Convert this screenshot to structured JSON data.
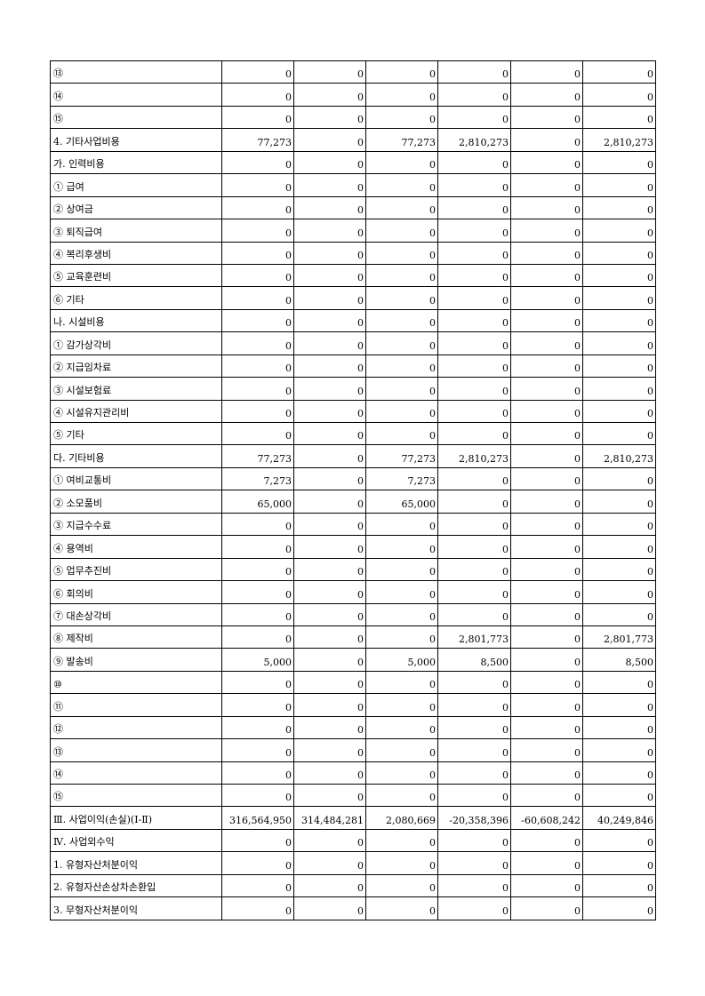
{
  "table": {
    "rows": [
      [
        "⑬",
        "0",
        "0",
        "0",
        "0",
        "0",
        "0"
      ],
      [
        "⑭",
        "0",
        "0",
        "0",
        "0",
        "0",
        "0"
      ],
      [
        "⑮",
        "0",
        "0",
        "0",
        "0",
        "0",
        "0"
      ],
      [
        "4. 기타사업비용",
        "77,273",
        "0",
        "77,273",
        "2,810,273",
        "0",
        "2,810,273"
      ],
      [
        "가. 인력비용",
        "0",
        "0",
        "0",
        "0",
        "0",
        "0"
      ],
      [
        "① 급여",
        "0",
        "0",
        "0",
        "0",
        "0",
        "0"
      ],
      [
        "② 상여금",
        "0",
        "0",
        "0",
        "0",
        "0",
        "0"
      ],
      [
        "③ 퇴직급여",
        "0",
        "0",
        "0",
        "0",
        "0",
        "0"
      ],
      [
        "④ 복리후생비",
        "0",
        "0",
        "0",
        "0",
        "0",
        "0"
      ],
      [
        "⑤ 교육훈련비",
        "0",
        "0",
        "0",
        "0",
        "0",
        "0"
      ],
      [
        "⑥ 기타",
        "0",
        "0",
        "0",
        "0",
        "0",
        "0"
      ],
      [
        "나. 시설비용",
        "0",
        "0",
        "0",
        "0",
        "0",
        "0"
      ],
      [
        "① 감가상각비",
        "0",
        "0",
        "0",
        "0",
        "0",
        "0"
      ],
      [
        "② 지급임차료",
        "0",
        "0",
        "0",
        "0",
        "0",
        "0"
      ],
      [
        "③ 시설보험료",
        "0",
        "0",
        "0",
        "0",
        "0",
        "0"
      ],
      [
        "④ 시설유지관리비",
        "0",
        "0",
        "0",
        "0",
        "0",
        "0"
      ],
      [
        "⑤ 기타",
        "0",
        "0",
        "0",
        "0",
        "0",
        "0"
      ],
      [
        "다. 기타비용",
        "77,273",
        "0",
        "77,273",
        "2,810,273",
        "0",
        "2,810,273"
      ],
      [
        "① 여비교통비",
        "7,273",
        "0",
        "7,273",
        "0",
        "0",
        "0"
      ],
      [
        "② 소모품비",
        "65,000",
        "0",
        "65,000",
        "0",
        "0",
        "0"
      ],
      [
        "③ 지급수수료",
        "0",
        "0",
        "0",
        "0",
        "0",
        "0"
      ],
      [
        "④ 용역비",
        "0",
        "0",
        "0",
        "0",
        "0",
        "0"
      ],
      [
        "⑤ 업무추진비",
        "0",
        "0",
        "0",
        "0",
        "0",
        "0"
      ],
      [
        "⑥ 회의비",
        "0",
        "0",
        "0",
        "0",
        "0",
        "0"
      ],
      [
        "⑦ 대손상각비",
        "0",
        "0",
        "0",
        "0",
        "0",
        "0"
      ],
      [
        "⑧ 제작비",
        "0",
        "0",
        "0",
        "2,801,773",
        "0",
        "2,801,773"
      ],
      [
        "⑨ 발송비",
        "5,000",
        "0",
        "5,000",
        "8,500",
        "0",
        "8,500"
      ],
      [
        "⑩",
        "0",
        "0",
        "0",
        "0",
        "0",
        "0"
      ],
      [
        "⑪",
        "0",
        "0",
        "0",
        "0",
        "0",
        "0"
      ],
      [
        "⑫",
        "0",
        "0",
        "0",
        "0",
        "0",
        "0"
      ],
      [
        "⑬",
        "0",
        "0",
        "0",
        "0",
        "0",
        "0"
      ],
      [
        "⑭",
        "0",
        "0",
        "0",
        "0",
        "0",
        "0"
      ],
      [
        "⑮",
        "0",
        "0",
        "0",
        "0",
        "0",
        "0"
      ],
      [
        "Ⅲ. 사업이익(손실)(Ⅰ-Ⅱ)",
        "316,564,950",
        "314,484,281",
        "2,080,669",
        "-20,358,396",
        "-60,608,242",
        "40,249,846"
      ],
      [
        "Ⅳ. 사업외수익",
        "0",
        "0",
        "0",
        "0",
        "0",
        "0"
      ],
      [
        "1. 유형자산처분이익",
        "0",
        "0",
        "0",
        "0",
        "0",
        "0"
      ],
      [
        "2. 유형자산손상차손환입",
        "0",
        "0",
        "0",
        "0",
        "0",
        "0"
      ],
      [
        "3. 무형자산처분이익",
        "0",
        "0",
        "0",
        "0",
        "0",
        "0"
      ]
    ]
  }
}
